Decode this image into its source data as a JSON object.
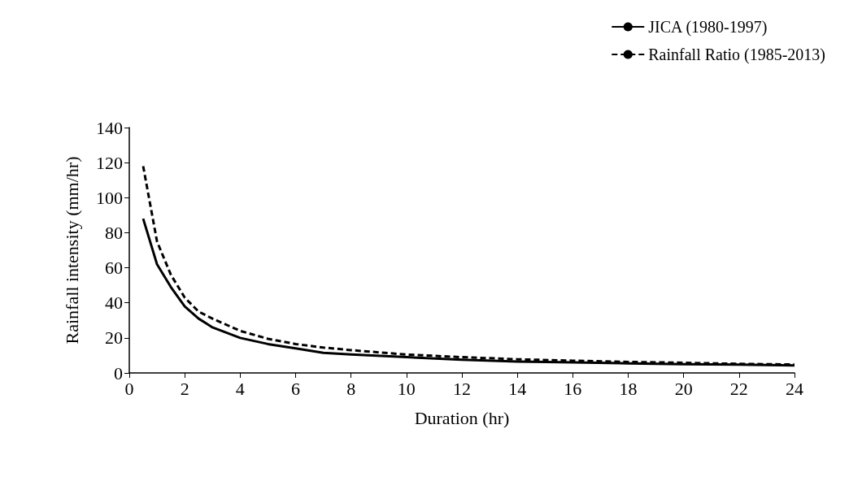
{
  "chart_data": {
    "type": "line",
    "xlabel": "Duration (hr)",
    "ylabel": "Rainfall intensity (mm/hr)",
    "xlim": [
      0,
      24
    ],
    "xticks": [
      0,
      2,
      4,
      6,
      8,
      10,
      12,
      14,
      16,
      18,
      20,
      22,
      24
    ],
    "ylim": [
      0,
      140
    ],
    "yticks": [
      0,
      20,
      40,
      60,
      80,
      100,
      120,
      140
    ],
    "grid": false,
    "legend": "top right",
    "marker": "none",
    "series": [
      {
        "name": "JICA (1980-1997)",
        "color": "#000000",
        "line_style": "solid",
        "x": [
          0.5,
          1,
          1.5,
          2,
          2.5,
          3,
          4,
          5,
          6,
          7,
          8,
          10,
          12,
          14,
          16,
          18,
          20,
          22,
          24
        ],
        "values": [
          88,
          62,
          49,
          38,
          31,
          26,
          20,
          16.5,
          14,
          11.5,
          10.5,
          9,
          7.5,
          6.5,
          6,
          5.5,
          5,
          4.7,
          4.3
        ]
      },
      {
        "name": "Rainfall Ratio (1985-2013)",
        "color": "#000000",
        "line_style": "dashed",
        "x": [
          0.5,
          1,
          1.5,
          2,
          2.5,
          3,
          4,
          5,
          6,
          7,
          8,
          10,
          12,
          14,
          16,
          18,
          20,
          22,
          24
        ],
        "values": [
          118,
          75,
          56,
          43,
          35,
          31,
          24,
          19.5,
          16.5,
          14.5,
          13,
          10.5,
          9,
          7.8,
          7,
          6.3,
          5.8,
          5.2,
          4.8
        ]
      }
    ]
  }
}
